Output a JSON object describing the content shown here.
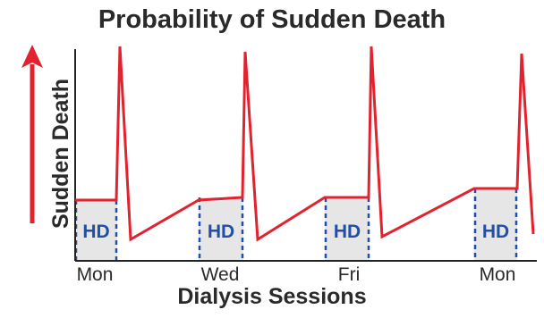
{
  "chart_data": {
    "type": "line",
    "title": "Probability of Sudden Death",
    "xlabel": "Dialysis Sessions",
    "ylabel": "Sudden Death",
    "categories": [
      "Mon",
      "Wed",
      "Fri",
      "Mon"
    ],
    "session_label": "HD",
    "grid": false,
    "colors": {
      "line": "#e0232e",
      "arrow": "#e0232e",
      "session_fill": "#e6e6e6",
      "session_border": "#1f4fa8",
      "session_text": "#1f4fa8",
      "axis": "#222222",
      "text": "#2a2a2a"
    }
  }
}
